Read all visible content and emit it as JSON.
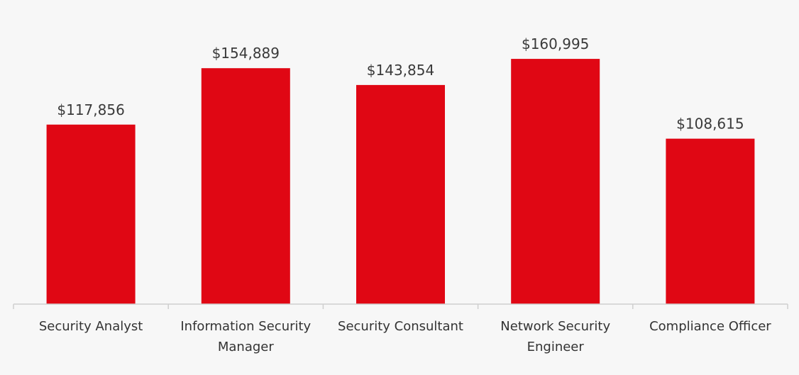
{
  "chart_data": {
    "type": "bar",
    "categories": [
      [
        "Security Analyst"
      ],
      [
        "Information Security",
        "Manager"
      ],
      [
        "Security Consultant"
      ],
      [
        "Network Security",
        "Engineer"
      ],
      [
        "Compliance Officer"
      ]
    ],
    "values": [
      117856,
      154889,
      143854,
      160995,
      108615
    ],
    "value_labels": [
      "$117,856",
      "$154,889",
      "$143,854",
      "$160,995",
      "$108,615"
    ],
    "ylim": [
      0,
      195000
    ],
    "grid": false,
    "legend": "none",
    "bar_color": "#e00714"
  }
}
